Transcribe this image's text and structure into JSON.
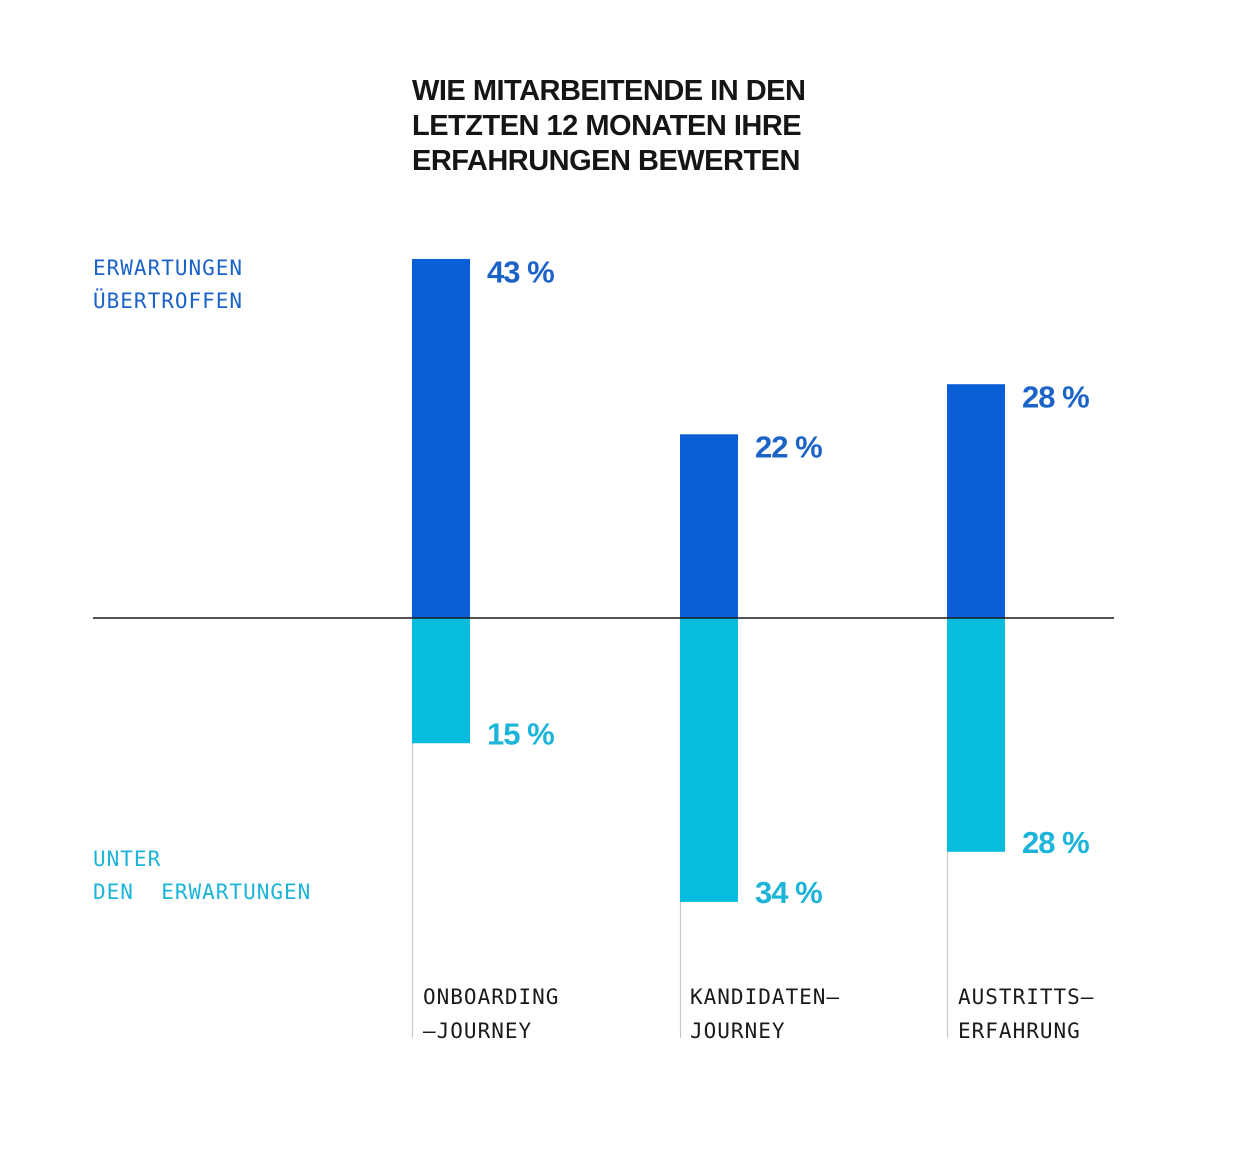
{
  "chart_data": {
    "type": "bar",
    "title_lines": [
      "WIE MITARBEITENDE IN DEN",
      "LETZTEN 12 MONATEN IHRE",
      "ERFAHRUNGEN BEWERTEN"
    ],
    "categories": [
      {
        "lines": [
          "ONBOARDING",
          "–JOURNEY"
        ]
      },
      {
        "lines": [
          "KANDIDATEN–",
          "JOURNEY"
        ]
      },
      {
        "lines": [
          "AUSTRITTS–",
          "ERFAHRUNG"
        ]
      }
    ],
    "series": [
      {
        "name_lines": [
          "ERWARTUNGEN",
          "ÜBERTROFFEN"
        ],
        "direction": "above",
        "color": "#0a5fd6",
        "values": [
          43,
          22,
          28
        ],
        "labels": [
          "43 %",
          "22 %",
          "28 %"
        ]
      },
      {
        "name_lines": [
          "UNTER",
          "DEN  ERWARTUNGEN"
        ],
        "direction": "below",
        "color": "#06bde0",
        "values": [
          15,
          34,
          28
        ],
        "labels": [
          "15 %",
          "34 %",
          "28 %"
        ]
      }
    ],
    "label_colors": {
      "above": "#1c63c8",
      "below": "#1cb4d8"
    },
    "axis_color": "#1a1a1a",
    "guide_color": "#c8c8c8",
    "ylim": [
      -34,
      43
    ],
    "grid": false
  }
}
